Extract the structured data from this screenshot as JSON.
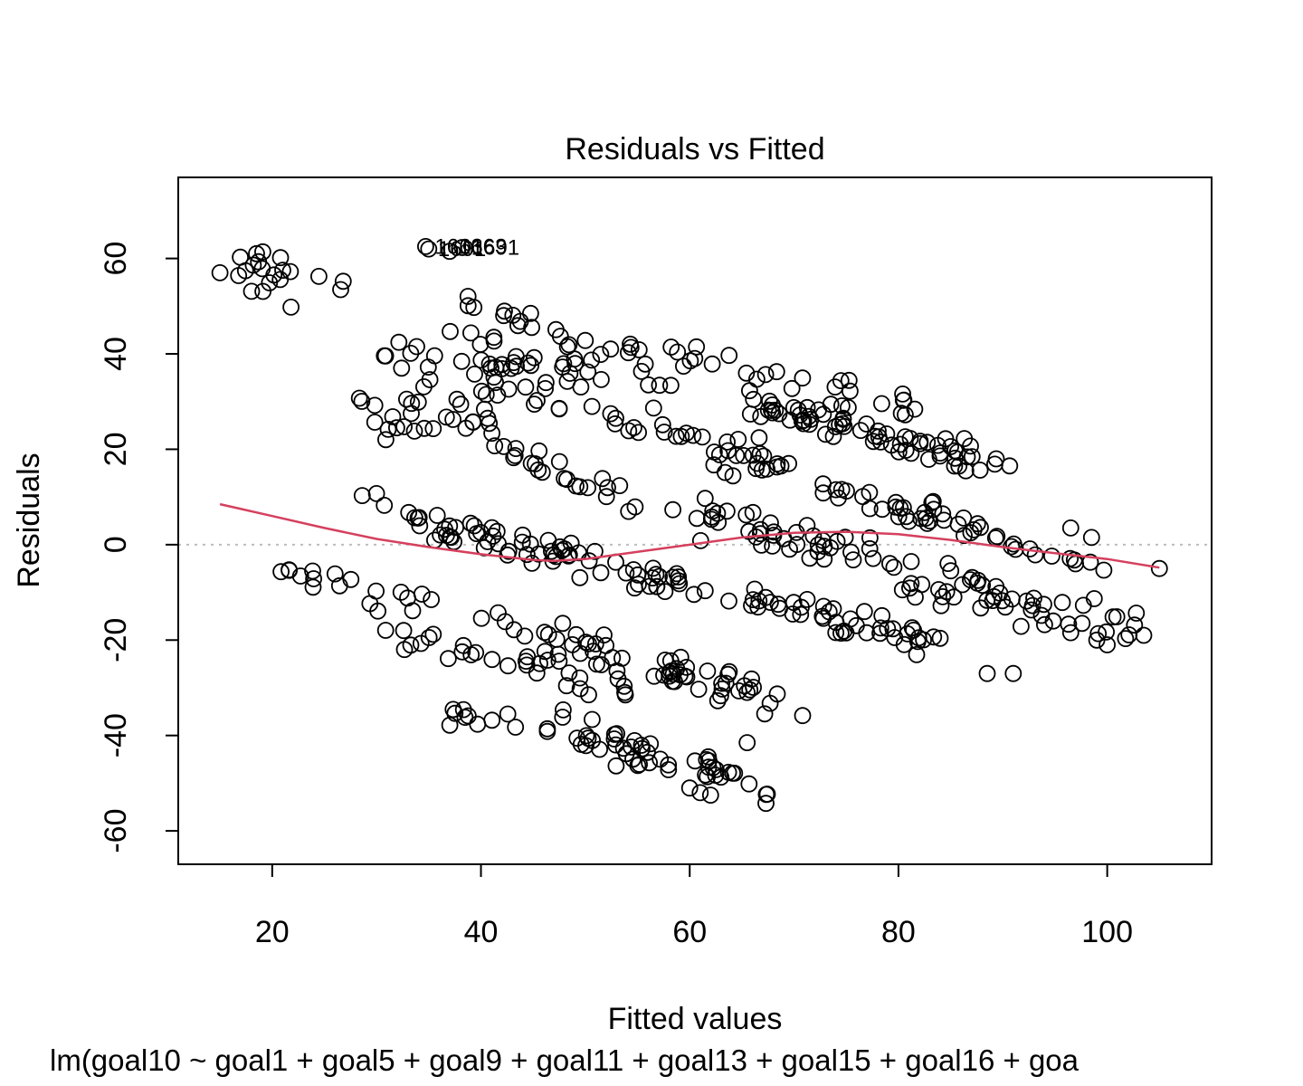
{
  "chart_data": {
    "type": "scatter",
    "title": "Residuals vs Fitted",
    "xlabel": "Fitted values",
    "ylabel": "Residuals",
    "subtitle": "lm(goal10 ~ goal1 + goal5 + goal9 + goal11 + goal13 + goal15 + goal16 + goa",
    "xlim": [
      11,
      110
    ],
    "ylim": [
      -67,
      77
    ],
    "x_ticks": [
      20,
      40,
      60,
      80,
      100
    ],
    "y_ticks": [
      -60,
      -40,
      -20,
      0,
      20,
      40,
      60
    ],
    "point_style": "open-circle",
    "reference_line": {
      "y": 0,
      "style": "dotted",
      "color": "#bdbdbd"
    },
    "smoother": {
      "color": "#d5405e",
      "x": [
        15,
        20,
        25,
        30,
        35,
        40,
        45,
        47,
        50,
        55,
        60,
        65,
        70,
        75,
        80,
        85,
        90,
        95,
        100,
        105
      ],
      "y": [
        8.5,
        6.0,
        3.5,
        1.2,
        -0.5,
        -2.0,
        -3.2,
        -3.4,
        -3.0,
        -1.5,
        0.0,
        1.5,
        2.5,
        2.7,
        2.2,
        1.0,
        -0.5,
        -1.8,
        -3.0,
        -4.8
      ]
    },
    "labeled_points": [
      {
        "label": "1663",
        "x": 34.7,
        "y": 62.5
      },
      {
        "label": "1691",
        "x": 35.0,
        "y": 62.0
      },
      {
        "label": "1663",
        "x": 37.0,
        "y": 62.5
      },
      {
        "label": "1691",
        "x": 38.2,
        "y": 62.3
      }
    ],
    "grid": false,
    "legend": "none"
  }
}
